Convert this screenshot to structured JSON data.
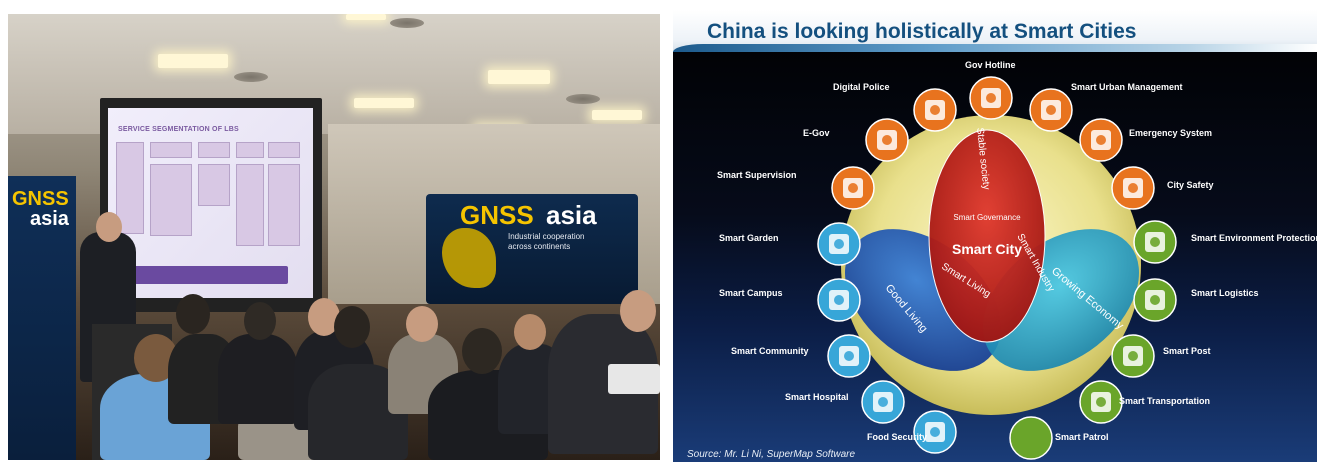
{
  "photo": {
    "screen_heading": "SERVICE SEGMENTATION OF LBS",
    "banner_left_line1": "GNSS",
    "banner_left_line2": "asia",
    "banner_right_line1": "GNSS",
    "banner_right_line2": "asia",
    "banner_right_tagline": "Industrial cooperation across continents"
  },
  "slide": {
    "title": "China is looking holistically at Smart Cities",
    "source": "Source: Mr. Li Ni, SuperMap Software",
    "center": {
      "governance": "Smart Governance",
      "city": "Smart City",
      "living": "Smart Living",
      "industry": "Smart Industry",
      "stable_society": "Stable society",
      "good_living": "Good Living",
      "growing_economy": "Growing Economy"
    },
    "services": [
      {
        "label": "Gov Hotline",
        "color": "#e8731e"
      },
      {
        "label": "Smart Urban Management",
        "color": "#e8731e"
      },
      {
        "label": "Emergency System",
        "color": "#e8731e"
      },
      {
        "label": "City Safety",
        "color": "#e8731e"
      },
      {
        "label": "Smart Environment Protection",
        "color": "#6aa52a"
      },
      {
        "label": "Smart Logistics",
        "color": "#6aa52a"
      },
      {
        "label": "Smart Post",
        "color": "#6aa52a"
      },
      {
        "label": "Smart Transportation",
        "color": "#6aa52a"
      },
      {
        "label": "Smart Patrol",
        "color": "#6aa52a"
      },
      {
        "label": "Food Security",
        "color": "#37a6d8"
      },
      {
        "label": "Smart Hospital",
        "color": "#37a6d8"
      },
      {
        "label": "Smart Community",
        "color": "#37a6d8"
      },
      {
        "label": "Smart Campus",
        "color": "#37a6d8"
      },
      {
        "label": "Smart Garden",
        "color": "#37a6d8"
      },
      {
        "label": "Smart Supervision",
        "color": "#e8731e"
      },
      {
        "label": "E-Gov",
        "color": "#e8731e"
      },
      {
        "label": "Digital Police",
        "color": "#e8731e"
      }
    ]
  }
}
